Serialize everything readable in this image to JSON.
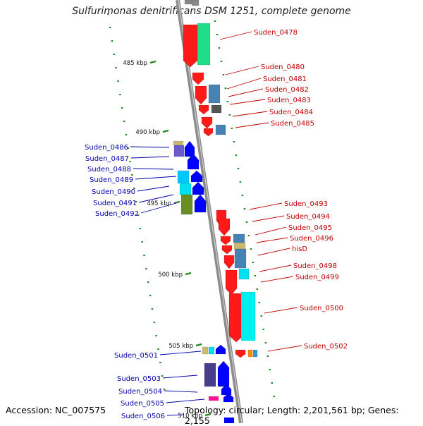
{
  "title": "Sulfurimonas denitrificans DSM 1251, complete genome",
  "footer": {
    "accession": "Accession: NC_007575",
    "topology": "Topology: circular; Length: 2,201,561 bp; Genes: 2,155"
  },
  "colors": {
    "backbone": "#8c8c8c",
    "tick_minor": "#1f8a1f",
    "label_reverse": "#c00000",
    "label_forward": "#0000aa"
  },
  "scale_ticks": [
    {
      "label": "485 kbp"
    },
    {
      "label": "490 kbp"
    },
    {
      "label": "495 kbp"
    },
    {
      "label": "500 kbp"
    },
    {
      "label": "505 kbp"
    },
    {
      "label": "510 kbp"
    }
  ],
  "genes": [
    {
      "name": "Suden_0478",
      "strand": "-"
    },
    {
      "name": "Suden_0480",
      "strand": "-"
    },
    {
      "name": "Suden_0481",
      "strand": "-"
    },
    {
      "name": "Suden_0482",
      "strand": "-"
    },
    {
      "name": "Suden_0483",
      "strand": "-"
    },
    {
      "name": "Suden_0484",
      "strand": "-"
    },
    {
      "name": "Suden_0485",
      "strand": "-"
    },
    {
      "name": "Suden_0486",
      "strand": "+"
    },
    {
      "name": "Suden_0487",
      "strand": "+"
    },
    {
      "name": "Suden_0488",
      "strand": "+"
    },
    {
      "name": "Suden_0489",
      "strand": "+"
    },
    {
      "name": "Suden_0490",
      "strand": "+"
    },
    {
      "name": "Suden_0491",
      "strand": "+"
    },
    {
      "name": "Suden_0492",
      "strand": "+"
    },
    {
      "name": "Suden_0493",
      "strand": "-"
    },
    {
      "name": "Suden_0494",
      "strand": "-"
    },
    {
      "name": "Suden_0495",
      "strand": "-"
    },
    {
      "name": "Suden_0496",
      "strand": "-"
    },
    {
      "name": "hisD",
      "strand": "-"
    },
    {
      "name": "Suden_0498",
      "strand": "-"
    },
    {
      "name": "Suden_0499",
      "strand": "-"
    },
    {
      "name": "Suden_0500",
      "strand": "-"
    },
    {
      "name": "Suden_0502",
      "strand": "-"
    },
    {
      "name": "Suden_0501",
      "strand": "+"
    },
    {
      "name": "Suden_0503",
      "strand": "+"
    },
    {
      "name": "Suden_0504",
      "strand": "+"
    },
    {
      "name": "Suden_0505",
      "strand": "+"
    },
    {
      "name": "Suden_0506",
      "strand": "+"
    }
  ]
}
